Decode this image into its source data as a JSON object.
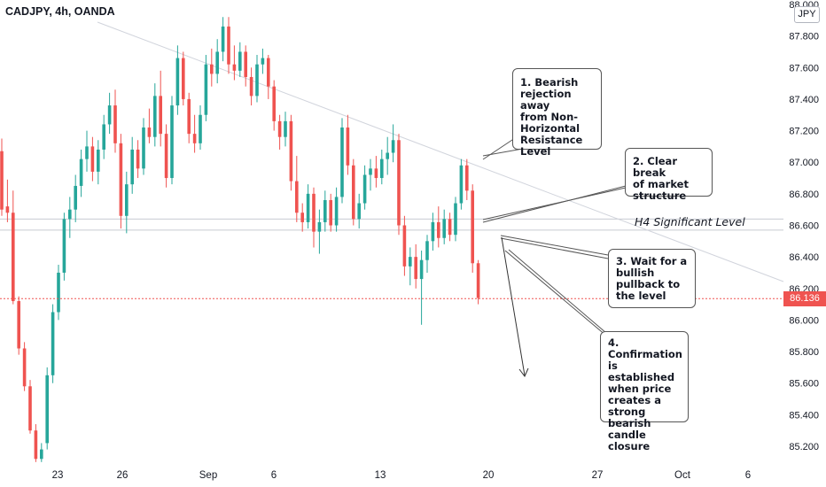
{
  "symbol_title": "CADJPY, 4h, OANDA",
  "currency": "JPY",
  "current_price": "86.136",
  "level_label": "H4 Significant Level",
  "colors": {
    "bull": "#26a69a",
    "bear": "#ef5350",
    "price_line": "#ef5350",
    "trendline": "#d1d4dc",
    "level": "#c8cbd2",
    "text": "#131722"
  },
  "annotations": [
    "1. Bearish\nrejection away\nfrom Non-\nHorizontal\nResistance\nLevel",
    "2. Clear break\nof market\nstructure",
    "3. Wait for a\nbullish\npullback to\nthe level",
    "4.\nConfirmation\nis established\nwhen price\ncreates a\nstrong bearish\ncandle closure"
  ],
  "chart_data": {
    "type": "candlestick",
    "symbol": "CADJPY",
    "timeframe": "4h",
    "source": "OANDA",
    "ylim": [
      85.1,
      88.0
    ],
    "y_ticks": [
      "85.200",
      "85.400",
      "85.600",
      "85.800",
      "86.000",
      "86.200",
      "86.400",
      "86.600",
      "86.800",
      "87.000",
      "87.200",
      "87.400",
      "87.600",
      "87.800",
      "88.000"
    ],
    "x_ticks": [
      "23",
      "26",
      "Sep",
      "6",
      "13",
      "20",
      "27",
      "Oct",
      "6"
    ],
    "horizontal_levels": [
      86.64,
      86.57
    ],
    "current_price": 86.136,
    "candles": [
      {
        "o": 87.07,
        "h": 87.15,
        "l": 86.66,
        "c": 86.7
      },
      {
        "o": 86.72,
        "h": 86.89,
        "l": 86.62,
        "c": 86.68
      },
      {
        "o": 86.68,
        "h": 86.82,
        "l": 86.1,
        "c": 86.12
      },
      {
        "o": 86.12,
        "h": 86.15,
        "l": 85.78,
        "c": 85.82
      },
      {
        "o": 85.82,
        "h": 85.86,
        "l": 85.55,
        "c": 85.58
      },
      {
        "o": 85.58,
        "h": 85.62,
        "l": 85.28,
        "c": 85.3
      },
      {
        "o": 85.3,
        "h": 85.34,
        "l": 85.1,
        "c": 85.12
      },
      {
        "o": 85.12,
        "h": 85.22,
        "l": 85.1,
        "c": 85.18
      },
      {
        "o": 85.22,
        "h": 85.7,
        "l": 85.18,
        "c": 85.65
      },
      {
        "o": 85.65,
        "h": 86.1,
        "l": 85.6,
        "c": 86.05
      },
      {
        "o": 86.05,
        "h": 86.35,
        "l": 86.0,
        "c": 86.3
      },
      {
        "o": 86.3,
        "h": 86.68,
        "l": 86.25,
        "c": 86.64
      },
      {
        "o": 86.64,
        "h": 86.78,
        "l": 86.52,
        "c": 86.7
      },
      {
        "o": 86.7,
        "h": 86.92,
        "l": 86.62,
        "c": 86.85
      },
      {
        "o": 86.85,
        "h": 87.08,
        "l": 86.78,
        "c": 87.02
      },
      {
        "o": 87.02,
        "h": 87.2,
        "l": 86.94,
        "c": 87.1
      },
      {
        "o": 87.1,
        "h": 87.16,
        "l": 86.88,
        "c": 86.94
      },
      {
        "o": 86.94,
        "h": 87.14,
        "l": 86.86,
        "c": 87.08
      },
      {
        "o": 87.08,
        "h": 87.3,
        "l": 87.02,
        "c": 87.24
      },
      {
        "o": 87.24,
        "h": 87.44,
        "l": 87.18,
        "c": 87.36
      },
      {
        "o": 87.36,
        "h": 87.46,
        "l": 87.06,
        "c": 87.12
      },
      {
        "o": 87.12,
        "h": 87.18,
        "l": 86.58,
        "c": 86.66
      },
      {
        "o": 86.66,
        "h": 86.94,
        "l": 86.55,
        "c": 86.86
      },
      {
        "o": 86.86,
        "h": 87.16,
        "l": 86.8,
        "c": 87.08
      },
      {
        "o": 87.08,
        "h": 87.14,
        "l": 86.9,
        "c": 86.96
      },
      {
        "o": 86.96,
        "h": 87.28,
        "l": 86.92,
        "c": 87.22
      },
      {
        "o": 87.22,
        "h": 87.34,
        "l": 87.12,
        "c": 87.16
      },
      {
        "o": 87.16,
        "h": 87.5,
        "l": 87.1,
        "c": 87.42
      },
      {
        "o": 87.42,
        "h": 87.58,
        "l": 87.1,
        "c": 87.18
      },
      {
        "o": 87.18,
        "h": 87.24,
        "l": 86.84,
        "c": 86.9
      },
      {
        "o": 86.9,
        "h": 87.42,
        "l": 86.86,
        "c": 87.36
      },
      {
        "o": 87.36,
        "h": 87.74,
        "l": 87.3,
        "c": 87.66
      },
      {
        "o": 87.66,
        "h": 87.7,
        "l": 87.36,
        "c": 87.4
      },
      {
        "o": 87.4,
        "h": 87.44,
        "l": 87.12,
        "c": 87.18
      },
      {
        "o": 87.18,
        "h": 87.3,
        "l": 87.06,
        "c": 87.12
      },
      {
        "o": 87.12,
        "h": 87.36,
        "l": 87.08,
        "c": 87.3
      },
      {
        "o": 87.3,
        "h": 87.68,
        "l": 87.26,
        "c": 87.62
      },
      {
        "o": 87.62,
        "h": 87.72,
        "l": 87.48,
        "c": 87.56
      },
      {
        "o": 87.56,
        "h": 87.78,
        "l": 87.5,
        "c": 87.7
      },
      {
        "o": 87.7,
        "h": 87.92,
        "l": 87.64,
        "c": 87.86
      },
      {
        "o": 87.86,
        "h": 87.92,
        "l": 87.56,
        "c": 87.62
      },
      {
        "o": 87.62,
        "h": 87.74,
        "l": 87.52,
        "c": 87.58
      },
      {
        "o": 87.58,
        "h": 87.76,
        "l": 87.54,
        "c": 87.7
      },
      {
        "o": 87.7,
        "h": 87.74,
        "l": 87.48,
        "c": 87.54
      },
      {
        "o": 87.54,
        "h": 87.6,
        "l": 87.36,
        "c": 87.42
      },
      {
        "o": 87.42,
        "h": 87.68,
        "l": 87.38,
        "c": 87.62
      },
      {
        "o": 87.62,
        "h": 87.72,
        "l": 87.56,
        "c": 87.66
      },
      {
        "o": 87.66,
        "h": 87.68,
        "l": 87.4,
        "c": 87.48
      },
      {
        "o": 87.48,
        "h": 87.52,
        "l": 87.2,
        "c": 87.26
      },
      {
        "o": 87.26,
        "h": 87.3,
        "l": 87.08,
        "c": 87.16
      },
      {
        "o": 87.16,
        "h": 87.32,
        "l": 87.1,
        "c": 87.26
      },
      {
        "o": 87.26,
        "h": 87.3,
        "l": 86.82,
        "c": 86.88
      },
      {
        "o": 86.88,
        "h": 87.04,
        "l": 86.62,
        "c": 86.68
      },
      {
        "o": 86.68,
        "h": 86.74,
        "l": 86.56,
        "c": 86.62
      },
      {
        "o": 86.62,
        "h": 86.86,
        "l": 86.58,
        "c": 86.8
      },
      {
        "o": 86.8,
        "h": 86.84,
        "l": 86.46,
        "c": 86.56
      },
      {
        "o": 86.56,
        "h": 86.7,
        "l": 86.42,
        "c": 86.62
      },
      {
        "o": 86.62,
        "h": 86.82,
        "l": 86.56,
        "c": 86.76
      },
      {
        "o": 86.76,
        "h": 86.8,
        "l": 86.56,
        "c": 86.6
      },
      {
        "o": 86.6,
        "h": 86.84,
        "l": 86.56,
        "c": 86.78
      },
      {
        "o": 86.78,
        "h": 87.28,
        "l": 86.74,
        "c": 87.22
      },
      {
        "o": 87.22,
        "h": 87.3,
        "l": 86.92,
        "c": 86.98
      },
      {
        "o": 86.98,
        "h": 87.02,
        "l": 86.6,
        "c": 86.64
      },
      {
        "o": 86.64,
        "h": 86.8,
        "l": 86.58,
        "c": 86.74
      },
      {
        "o": 86.74,
        "h": 86.98,
        "l": 86.7,
        "c": 86.92
      },
      {
        "o": 86.92,
        "h": 87.02,
        "l": 86.82,
        "c": 86.96
      },
      {
        "o": 86.96,
        "h": 87.04,
        "l": 86.84,
        "c": 86.9
      },
      {
        "o": 86.9,
        "h": 87.08,
        "l": 86.86,
        "c": 87.02
      },
      {
        "o": 87.02,
        "h": 87.16,
        "l": 86.92,
        "c": 87.06
      },
      {
        "o": 87.06,
        "h": 87.24,
        "l": 87.0,
        "c": 87.14
      },
      {
        "o": 87.14,
        "h": 87.18,
        "l": 86.54,
        "c": 86.6
      },
      {
        "o": 86.6,
        "h": 86.66,
        "l": 86.28,
        "c": 86.34
      },
      {
        "o": 86.34,
        "h": 86.46,
        "l": 86.22,
        "c": 86.4
      },
      {
        "o": 86.4,
        "h": 86.48,
        "l": 86.2,
        "c": 86.26
      },
      {
        "o": 86.26,
        "h": 86.44,
        "l": 85.97,
        "c": 86.38
      },
      {
        "o": 86.38,
        "h": 86.54,
        "l": 86.3,
        "c": 86.5
      },
      {
        "o": 86.5,
        "h": 86.68,
        "l": 86.44,
        "c": 86.62
      },
      {
        "o": 86.62,
        "h": 86.72,
        "l": 86.46,
        "c": 86.52
      },
      {
        "o": 86.52,
        "h": 86.7,
        "l": 86.48,
        "c": 86.64
      },
      {
        "o": 86.64,
        "h": 86.68,
        "l": 86.5,
        "c": 86.54
      },
      {
        "o": 86.54,
        "h": 86.78,
        "l": 86.5,
        "c": 86.74
      },
      {
        "o": 86.74,
        "h": 87.02,
        "l": 86.7,
        "c": 86.98
      },
      {
        "o": 86.98,
        "h": 87.02,
        "l": 86.76,
        "c": 86.82
      },
      {
        "o": 86.82,
        "h": 86.86,
        "l": 86.3,
        "c": 86.36
      },
      {
        "o": 86.36,
        "h": 86.38,
        "l": 86.1,
        "c": 86.14
      }
    ]
  }
}
